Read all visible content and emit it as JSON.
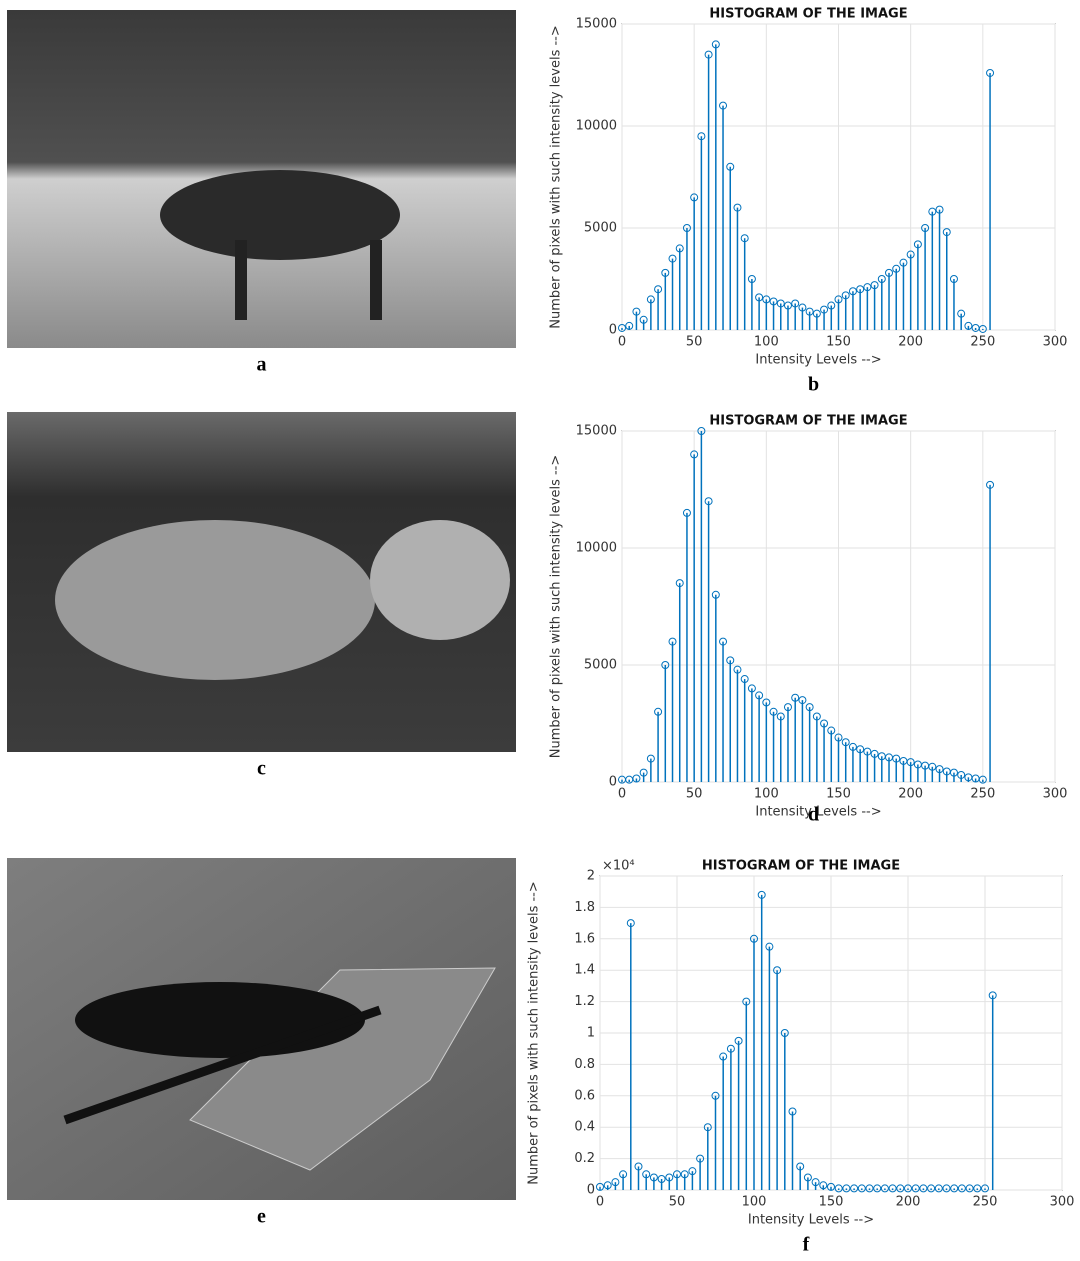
{
  "chart_data": [
    {
      "type": "stem",
      "title": "HISTOGRAM OF THE IMAGE",
      "x_label": "Intensity Levels  -->",
      "y_label": "Number of pixels with such intensity levels -->",
      "image_label": "a",
      "label": "b",
      "color": "#0072bd",
      "grid": true,
      "xlim": [
        0,
        300
      ],
      "xticks": [
        0,
        50,
        100,
        150,
        200,
        250,
        300
      ],
      "ylim": [
        0,
        15000
      ],
      "yticks": [
        0,
        5000,
        10000,
        15000
      ],
      "x": [
        0,
        5,
        10,
        15,
        20,
        25,
        30,
        35,
        40,
        45,
        50,
        55,
        60,
        65,
        70,
        75,
        80,
        85,
        90,
        95,
        100,
        105,
        110,
        115,
        120,
        125,
        130,
        135,
        140,
        145,
        150,
        155,
        160,
        165,
        170,
        175,
        180,
        185,
        190,
        195,
        200,
        205,
        210,
        215,
        220,
        225,
        230,
        235,
        240,
        245,
        250,
        255
      ],
      "values": [
        100,
        200,
        900,
        500,
        1500,
        2000,
        2800,
        3500,
        4000,
        5000,
        6500,
        9500,
        13500,
        14000,
        11000,
        8000,
        6000,
        4500,
        2500,
        1600,
        1500,
        1400,
        1300,
        1200,
        1300,
        1100,
        900,
        800,
        1000,
        1200,
        1500,
        1700,
        1900,
        2000,
        2100,
        2200,
        2500,
        2800,
        3000,
        3300,
        3700,
        4200,
        5000,
        5800,
        5900,
        4800,
        2500,
        800,
        200,
        100,
        50,
        12600
      ]
    },
    {
      "type": "stem",
      "title": "HISTOGRAM OF THE IMAGE",
      "x_label": "Intensity Levels  -->",
      "y_label": "Number of pixels with such intensity levels -->",
      "image_label": "c",
      "label": "d",
      "color": "#0072bd",
      "grid": true,
      "xlim": [
        0,
        300
      ],
      "xticks": [
        0,
        50,
        100,
        150,
        200,
        250,
        300
      ],
      "ylim": [
        0,
        15000
      ],
      "yticks": [
        0,
        5000,
        10000,
        15000
      ],
      "x": [
        0,
        5,
        10,
        15,
        20,
        25,
        30,
        35,
        40,
        45,
        50,
        55,
        60,
        65,
        70,
        75,
        80,
        85,
        90,
        95,
        100,
        105,
        110,
        115,
        120,
        125,
        130,
        135,
        140,
        145,
        150,
        155,
        160,
        165,
        170,
        175,
        180,
        185,
        190,
        195,
        200,
        205,
        210,
        215,
        220,
        225,
        230,
        235,
        240,
        245,
        250,
        255
      ],
      "values": [
        100,
        100,
        150,
        400,
        1000,
        3000,
        5000,
        6000,
        8500,
        11500,
        14000,
        15000,
        12000,
        8000,
        6000,
        5200,
        4800,
        4400,
        4000,
        3700,
        3400,
        3000,
        2800,
        3200,
        3600,
        3500,
        3200,
        2800,
        2500,
        2200,
        1900,
        1700,
        1500,
        1400,
        1300,
        1200,
        1100,
        1050,
        1000,
        900,
        850,
        750,
        700,
        650,
        550,
        450,
        400,
        300,
        200,
        150,
        100,
        12700
      ]
    },
    {
      "type": "stem",
      "title": "HISTOGRAM OF THE IMAGE",
      "x_label": "Intensity Levels  -->",
      "y_label": "Number of pixels with such intensity levels -->",
      "image_label": "e",
      "label": "f",
      "color": "#0072bd",
      "grid": true,
      "y_exponent_label": "×10⁴",
      "xlim": [
        0,
        300
      ],
      "xticks": [
        0,
        50,
        100,
        150,
        200,
        250,
        300
      ],
      "ylim": [
        0,
        2
      ],
      "yticks": [
        0,
        0.2,
        0.4,
        0.6,
        0.8,
        1,
        1.2,
        1.4,
        1.6,
        1.8,
        2
      ],
      "x": [
        0,
        5,
        10,
        15,
        20,
        25,
        30,
        35,
        40,
        45,
        50,
        55,
        60,
        65,
        70,
        75,
        80,
        85,
        90,
        95,
        100,
        105,
        110,
        115,
        120,
        125,
        130,
        135,
        140,
        145,
        150,
        155,
        160,
        165,
        170,
        175,
        180,
        185,
        190,
        195,
        200,
        205,
        210,
        215,
        220,
        225,
        230,
        235,
        240,
        245,
        250,
        255
      ],
      "values": [
        0.02,
        0.03,
        0.05,
        0.1,
        1.7,
        0.15,
        0.1,
        0.08,
        0.07,
        0.08,
        0.1,
        0.1,
        0.12,
        0.2,
        0.4,
        0.6,
        0.85,
        0.9,
        0.95,
        1.2,
        1.6,
        1.88,
        1.55,
        1.4,
        1.0,
        0.5,
        0.15,
        0.08,
        0.05,
        0.03,
        0.02,
        0.01,
        0.01,
        0.01,
        0.01,
        0.01,
        0.01,
        0.01,
        0.01,
        0.01,
        0.01,
        0.01,
        0.01,
        0.01,
        0.01,
        0.01,
        0.01,
        0.01,
        0.01,
        0.01,
        0.01,
        1.24
      ]
    }
  ]
}
